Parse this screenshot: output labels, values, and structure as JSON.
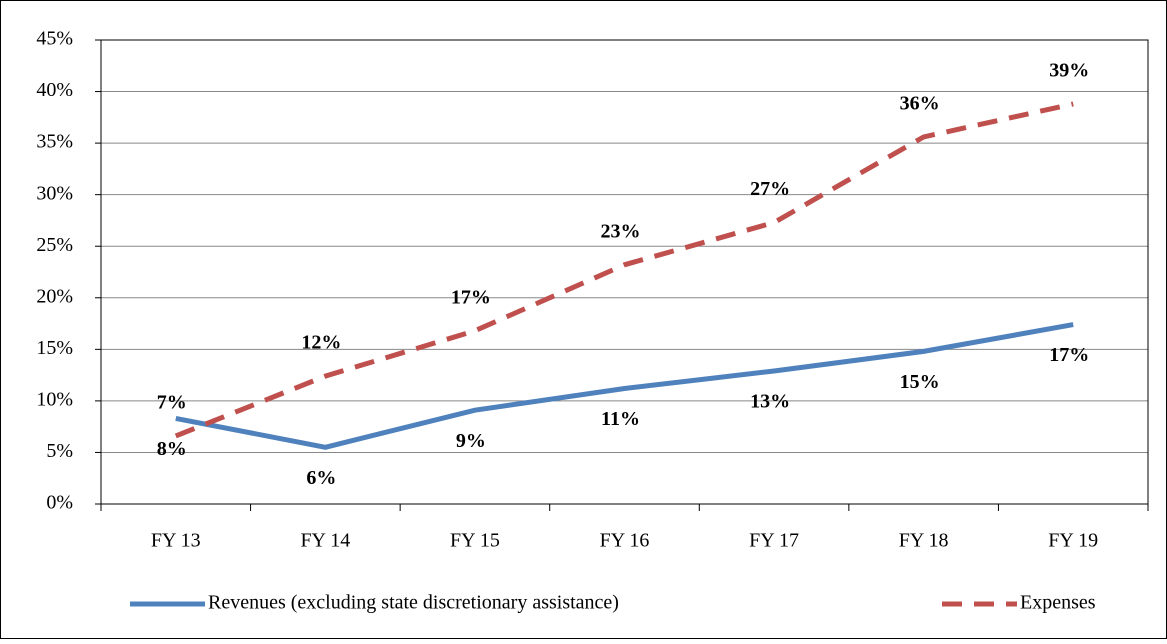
{
  "chart_data": {
    "type": "line",
    "categories": [
      "FY 13",
      "FY 14",
      "FY 15",
      "FY 16",
      "FY 17",
      "FY 18",
      "FY 19"
    ],
    "series": [
      {
        "name": "Revenues (excluding state discretionary assistance)",
        "color": "#4f81bd",
        "dashed": false,
        "values": [
          8.3,
          5.5,
          9.1,
          11.2,
          12.9,
          14.8,
          17.4
        ],
        "value_labels": [
          "8%",
          "6%",
          "9%",
          "11%",
          "13%",
          "15%",
          "17%"
        ],
        "label_position": "below"
      },
      {
        "name": "Expenses",
        "color": "#c0504d",
        "dashed": true,
        "values": [
          6.6,
          12.4,
          16.8,
          23.2,
          27.3,
          35.6,
          38.8
        ],
        "value_labels": [
          "7%",
          "12%",
          "17%",
          "23%",
          "27%",
          "36%",
          "39%"
        ],
        "label_position": "above"
      }
    ],
    "ylim": [
      0,
      45
    ],
    "yticks": [
      {
        "value": 0,
        "label": "0%"
      },
      {
        "value": 5,
        "label": "5%"
      },
      {
        "value": 10,
        "label": "10%"
      },
      {
        "value": 15,
        "label": "15%"
      },
      {
        "value": 20,
        "label": "20%"
      },
      {
        "value": 25,
        "label": "25%"
      },
      {
        "value": 30,
        "label": "30%"
      },
      {
        "value": 35,
        "label": "35%"
      },
      {
        "value": 40,
        "label": "40%"
      },
      {
        "value": 45,
        "label": "45%"
      }
    ],
    "grid": true,
    "legend": "bottom"
  }
}
